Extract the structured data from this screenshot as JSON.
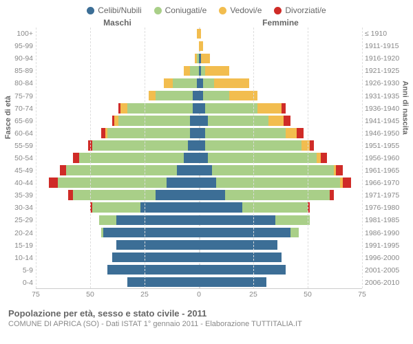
{
  "legend": [
    {
      "label": "Celibi/Nubili",
      "color": "#3c6e96"
    },
    {
      "label": "Coniugati/e",
      "color": "#a9cf88"
    },
    {
      "label": "Vedovi/e",
      "color": "#f2bd4f"
    },
    {
      "label": "Divorziati/e",
      "color": "#cf2b27"
    }
  ],
  "header": {
    "male": "Maschi",
    "female": "Femmine"
  },
  "axis_left_label": "Fasce di età",
  "axis_right_label": "Anni di nascita",
  "x_max": 75,
  "x_ticks_male": [
    75,
    50,
    25,
    0
  ],
  "x_ticks_female": [
    0,
    25,
    50,
    75
  ],
  "colors": {
    "single": "#3c6e96",
    "married": "#a9cf88",
    "widowed": "#f2bd4f",
    "divorced": "#cf2b27",
    "grid": "#dddddd",
    "bg": "#ffffff"
  },
  "age_groups": [
    {
      "age": "100+",
      "birth": "≤ 1910",
      "m": {
        "s": 0,
        "c": 0,
        "w": 1,
        "d": 0
      },
      "f": {
        "s": 0,
        "c": 0,
        "w": 1,
        "d": 0
      }
    },
    {
      "age": "95-99",
      "birth": "1911-1915",
      "m": {
        "s": 0,
        "c": 0,
        "w": 0,
        "d": 0
      },
      "f": {
        "s": 0,
        "c": 0,
        "w": 2,
        "d": 0
      }
    },
    {
      "age": "90-94",
      "birth": "1916-1920",
      "m": {
        "s": 0,
        "c": 1,
        "w": 1,
        "d": 0
      },
      "f": {
        "s": 1,
        "c": 0,
        "w": 4,
        "d": 0
      }
    },
    {
      "age": "85-89",
      "birth": "1921-1925",
      "m": {
        "s": 0,
        "c": 4,
        "w": 3,
        "d": 0
      },
      "f": {
        "s": 1,
        "c": 2,
        "w": 11,
        "d": 0
      }
    },
    {
      "age": "80-84",
      "birth": "1926-1930",
      "m": {
        "s": 1,
        "c": 11,
        "w": 4,
        "d": 0
      },
      "f": {
        "s": 2,
        "c": 5,
        "w": 16,
        "d": 0
      }
    },
    {
      "age": "75-79",
      "birth": "1931-1935",
      "m": {
        "s": 3,
        "c": 17,
        "w": 3,
        "d": 0
      },
      "f": {
        "s": 2,
        "c": 12,
        "w": 13,
        "d": 0
      }
    },
    {
      "age": "70-74",
      "birth": "1936-1940",
      "m": {
        "s": 3,
        "c": 30,
        "w": 3,
        "d": 1
      },
      "f": {
        "s": 3,
        "c": 24,
        "w": 11,
        "d": 2
      }
    },
    {
      "age": "65-69",
      "birth": "1941-1945",
      "m": {
        "s": 4,
        "c": 33,
        "w": 2,
        "d": 1
      },
      "f": {
        "s": 4,
        "c": 28,
        "w": 7,
        "d": 3
      }
    },
    {
      "age": "60-64",
      "birth": "1946-1950",
      "m": {
        "s": 4,
        "c": 38,
        "w": 1,
        "d": 2
      },
      "f": {
        "s": 3,
        "c": 37,
        "w": 5,
        "d": 3
      }
    },
    {
      "age": "55-59",
      "birth": "1951-1955",
      "m": {
        "s": 5,
        "c": 44,
        "w": 0,
        "d": 2
      },
      "f": {
        "s": 3,
        "c": 44,
        "w": 4,
        "d": 2
      }
    },
    {
      "age": "50-54",
      "birth": "1956-1960",
      "m": {
        "s": 7,
        "c": 48,
        "w": 0,
        "d": 3
      },
      "f": {
        "s": 4,
        "c": 50,
        "w": 2,
        "d": 3
      }
    },
    {
      "age": "45-49",
      "birth": "1961-1965",
      "m": {
        "s": 10,
        "c": 51,
        "w": 0,
        "d": 3
      },
      "f": {
        "s": 6,
        "c": 56,
        "w": 1,
        "d": 3
      }
    },
    {
      "age": "40-44",
      "birth": "1966-1970",
      "m": {
        "s": 15,
        "c": 50,
        "w": 0,
        "d": 4
      },
      "f": {
        "s": 8,
        "c": 57,
        "w": 1,
        "d": 4
      }
    },
    {
      "age": "35-39",
      "birth": "1971-1975",
      "m": {
        "s": 20,
        "c": 38,
        "w": 0,
        "d": 2
      },
      "f": {
        "s": 12,
        "c": 48,
        "w": 0,
        "d": 2
      }
    },
    {
      "age": "30-34",
      "birth": "1976-1980",
      "m": {
        "s": 27,
        "c": 22,
        "w": 0,
        "d": 1
      },
      "f": {
        "s": 20,
        "c": 30,
        "w": 0,
        "d": 1
      }
    },
    {
      "age": "25-29",
      "birth": "1981-1985",
      "m": {
        "s": 38,
        "c": 8,
        "w": 0,
        "d": 0
      },
      "f": {
        "s": 35,
        "c": 16,
        "w": 0,
        "d": 0
      }
    },
    {
      "age": "20-24",
      "birth": "1986-1990",
      "m": {
        "s": 44,
        "c": 1,
        "w": 0,
        "d": 0
      },
      "f": {
        "s": 42,
        "c": 4,
        "w": 0,
        "d": 0
      }
    },
    {
      "age": "15-19",
      "birth": "1991-1995",
      "m": {
        "s": 38,
        "c": 0,
        "w": 0,
        "d": 0
      },
      "f": {
        "s": 36,
        "c": 0,
        "w": 0,
        "d": 0
      }
    },
    {
      "age": "10-14",
      "birth": "1996-2000",
      "m": {
        "s": 40,
        "c": 0,
        "w": 0,
        "d": 0
      },
      "f": {
        "s": 38,
        "c": 0,
        "w": 0,
        "d": 0
      }
    },
    {
      "age": "5-9",
      "birth": "2001-2005",
      "m": {
        "s": 42,
        "c": 0,
        "w": 0,
        "d": 0
      },
      "f": {
        "s": 40,
        "c": 0,
        "w": 0,
        "d": 0
      }
    },
    {
      "age": "0-4",
      "birth": "2006-2010",
      "m": {
        "s": 33,
        "c": 0,
        "w": 0,
        "d": 0
      },
      "f": {
        "s": 31,
        "c": 0,
        "w": 0,
        "d": 0
      }
    }
  ],
  "title": "Popolazione per età, sesso e stato civile - 2011",
  "subtitle": "COMUNE DI APRICA (SO) - Dati ISTAT 1° gennaio 2011 - Elaborazione TUTTITALIA.IT"
}
